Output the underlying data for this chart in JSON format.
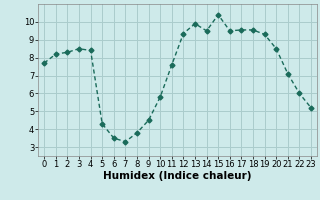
{
  "x": [
    0,
    1,
    2,
    3,
    4,
    5,
    6,
    7,
    8,
    9,
    10,
    11,
    12,
    13,
    14,
    15,
    16,
    17,
    18,
    19,
    20,
    21,
    22,
    23
  ],
  "y": [
    7.7,
    8.2,
    8.3,
    8.5,
    8.4,
    4.3,
    3.5,
    3.3,
    3.8,
    4.5,
    5.8,
    7.6,
    9.35,
    9.9,
    9.5,
    10.4,
    9.5,
    9.55,
    9.55,
    9.3,
    8.5,
    7.1,
    6.0,
    5.2
  ],
  "line_color": "#1a6b5a",
  "marker": "D",
  "markersize": 2.5,
  "linewidth": 1.0,
  "xlabel": "Humidex (Indice chaleur)",
  "xlim": [
    -0.5,
    23.5
  ],
  "ylim": [
    2.5,
    11.0
  ],
  "yticks": [
    3,
    4,
    5,
    6,
    7,
    8,
    9,
    10
  ],
  "xticks": [
    0,
    1,
    2,
    3,
    4,
    5,
    6,
    7,
    8,
    9,
    10,
    11,
    12,
    13,
    14,
    15,
    16,
    17,
    18,
    19,
    20,
    21,
    22,
    23
  ],
  "bg_color": "#ceeaea",
  "grid_color": "#aacccc",
  "tick_fontsize": 6,
  "xlabel_fontsize": 7.5
}
